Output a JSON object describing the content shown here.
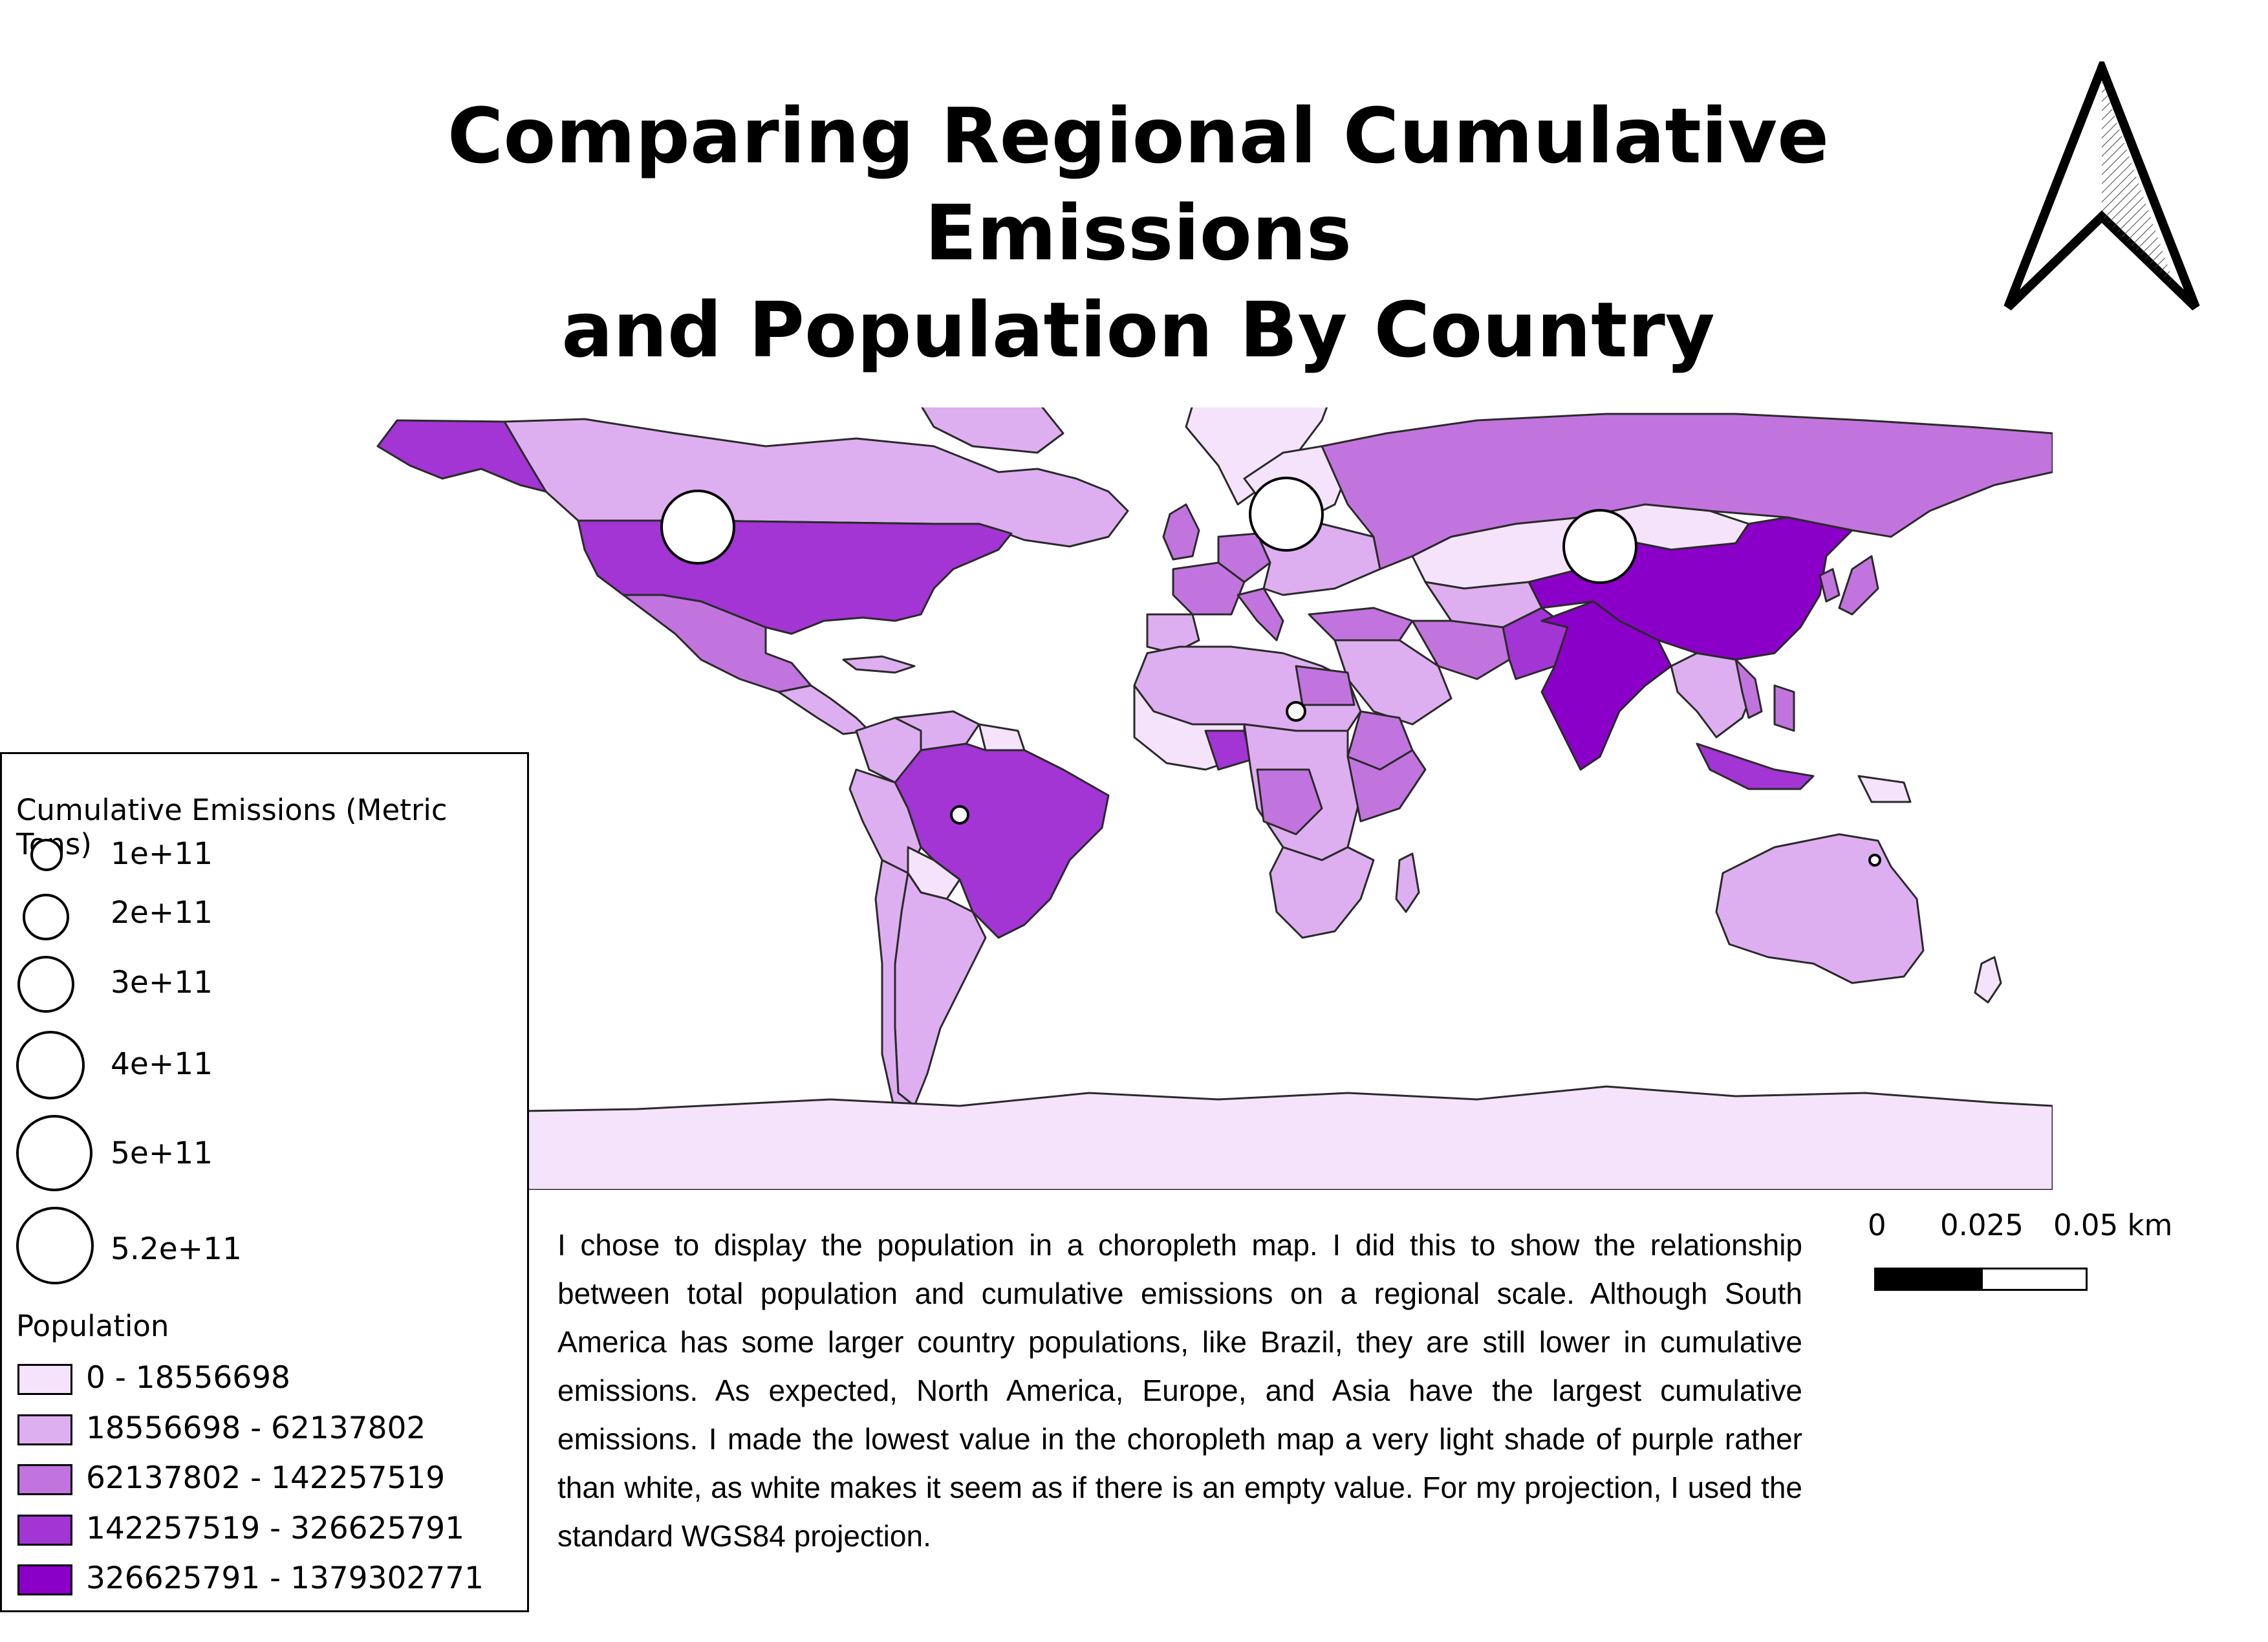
{
  "title_line1": "Comparing Regional Cumulative Emissions",
  "title_line2": "and Population By Country",
  "colors": {
    "class1": "#f5e3fb",
    "class2": "#deaff0",
    "class3": "#c274de",
    "class4": "#a235d3",
    "class5": "#8b00c8",
    "outline": "#2a2a2a"
  },
  "legend": {
    "emissions_title": "Cumulative Emissions (Metric Tons)",
    "emissions_items": [
      {
        "label": "1e+11"
      },
      {
        "label": "2e+11"
      },
      {
        "label": "3e+11"
      },
      {
        "label": "4e+11"
      },
      {
        "label": "5e+11"
      },
      {
        "label": "5.2e+11"
      }
    ],
    "population_title": "Population",
    "population_items": [
      {
        "label": "0 - 18556698",
        "color": "#f5e3fb"
      },
      {
        "label": "18556698 - 62137802",
        "color": "#deaff0"
      },
      {
        "label": "62137802 - 142257519",
        "color": "#c274de"
      },
      {
        "label": "142257519 - 326625791",
        "color": "#a235d3"
      },
      {
        "label": "326625791 - 1379302771",
        "color": "#8b00c8"
      }
    ]
  },
  "description": "I chose to display the population in a choropleth map.  I did this to show the relationship between total population and cumulative emissions on a regional scale.  Although South America has some larger country populations,  like Brazil,  they are still lower in cumulative emissions.  As expected,  North America,  Europe,  and Asia have the largest cumulative emissions.  I made the lowest value in the choropleth map a very light shade of purple rather than white,  as white makes it seem as if there is an empty value. For my projection,  I used the standard WGS84 projection.",
  "scalebar": {
    "tick_0": "0",
    "tick_1": "0.025",
    "tick_2": "0.05 km"
  },
  "north_arrow_icon": "north-arrow-icon"
}
